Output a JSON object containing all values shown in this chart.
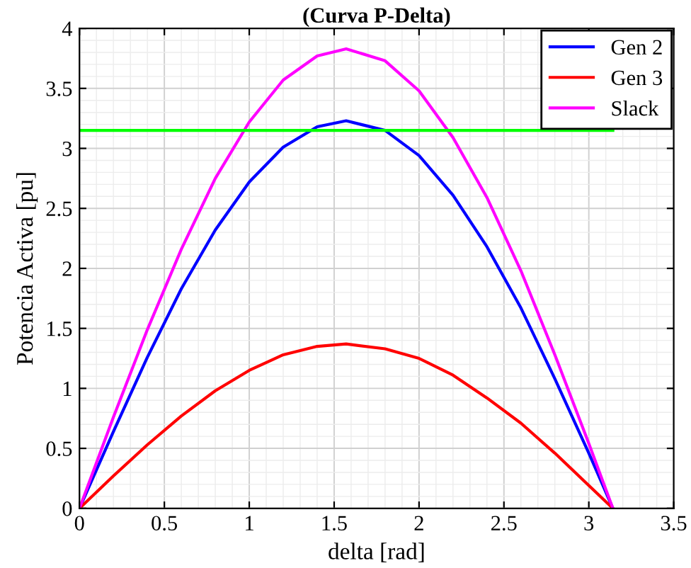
{
  "chart_data": {
    "type": "line",
    "title": "(Curva P-Delta)",
    "xlabel": "delta [rad]",
    "ylabel": "Potencia Activa [pu]",
    "x": [
      0,
      0.2,
      0.4,
      0.6,
      0.8,
      1.0,
      1.2,
      1.4,
      1.5708,
      1.8,
      2.0,
      2.2,
      2.4,
      2.6,
      2.8,
      3.0,
      3.1416
    ],
    "series": [
      {
        "name": "Gen 2",
        "color": "#0000ff",
        "values": [
          0,
          0.64,
          1.26,
          1.83,
          2.32,
          2.72,
          3.01,
          3.18,
          3.23,
          3.15,
          2.94,
          2.61,
          2.18,
          1.67,
          1.08,
          0.46,
          0
        ]
      },
      {
        "name": "Gen 3",
        "color": "#ff0000",
        "values": [
          0,
          0.27,
          0.53,
          0.77,
          0.98,
          1.15,
          1.28,
          1.35,
          1.37,
          1.33,
          1.25,
          1.11,
          0.92,
          0.71,
          0.46,
          0.19,
          0
        ]
      },
      {
        "name": "Slack",
        "color": "#ff00ff",
        "values": [
          0,
          0.76,
          1.49,
          2.16,
          2.75,
          3.22,
          3.57,
          3.77,
          3.83,
          3.73,
          3.48,
          3.09,
          2.59,
          1.98,
          1.28,
          0.54,
          0
        ]
      },
      {
        "color": "#00ff00",
        "x": [
          0,
          3.1416
        ],
        "values": [
          3.15,
          3.15
        ]
      }
    ],
    "xlim": [
      0,
      3.5
    ],
    "xticks": [
      0,
      0.5,
      1,
      1.5,
      2,
      2.5,
      3,
      3.5
    ],
    "ylim": [
      0,
      4
    ],
    "yticks": [
      0,
      0.5,
      1,
      1.5,
      2,
      2.5,
      3,
      3.5,
      4
    ],
    "grid": true,
    "legend": "top right",
    "marker": "none",
    "line_style": "solid"
  }
}
